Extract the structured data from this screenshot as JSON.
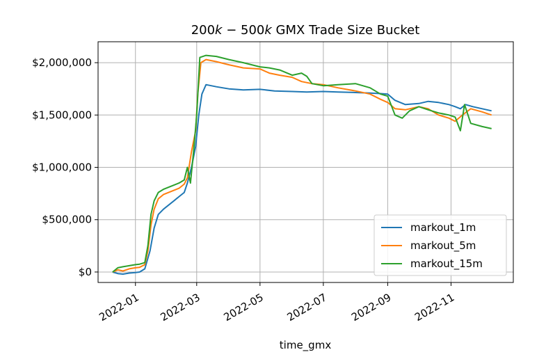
{
  "chart_data": {
    "type": "line",
    "title": "200k − 500k GMX Trade Size Bucket",
    "title_parts": {
      "a": "200",
      "b": "k",
      "c": " − 500",
      "d": "k",
      "e": " GMX Trade Size Bucket"
    },
    "xlabel": "time_gmx",
    "ylabel": "",
    "x_ticks": [
      "2022-01",
      "2022-03",
      "2022-05",
      "2022-07",
      "2022-09",
      "2022-11"
    ],
    "y_ticks": [
      "$0",
      "$500,000",
      "$1,000,000",
      "$1,500,000",
      "$2,000,000"
    ],
    "y_tick_values": [
      0,
      500000,
      1000000,
      1500000,
      2000000
    ],
    "xlim": [
      "2021-11-26",
      "2022-12-31"
    ],
    "ylim": [
      -100000,
      2200000
    ],
    "grid": true,
    "legend_position": "lower-right",
    "series": [
      {
        "name": "markout_1m",
        "color": "#1f77b4",
        "points": [
          [
            "2021-12-10",
            0
          ],
          [
            "2021-12-15",
            -15000
          ],
          [
            "2021-12-20",
            -20000
          ],
          [
            "2021-12-26",
            -10000
          ],
          [
            "2022-01-01",
            -5000
          ],
          [
            "2022-01-05",
            0
          ],
          [
            "2022-01-10",
            30000
          ],
          [
            "2022-01-15",
            200000
          ],
          [
            "2022-01-19",
            420000
          ],
          [
            "2022-01-23",
            550000
          ],
          [
            "2022-01-28",
            600000
          ],
          [
            "2022-02-02",
            640000
          ],
          [
            "2022-02-07",
            680000
          ],
          [
            "2022-02-12",
            720000
          ],
          [
            "2022-02-17",
            760000
          ],
          [
            "2022-02-20",
            850000
          ],
          [
            "2022-02-24",
            1000000
          ],
          [
            "2022-02-28",
            1200000
          ],
          [
            "2022-03-03",
            1500000
          ],
          [
            "2022-03-06",
            1700000
          ],
          [
            "2022-03-10",
            1790000
          ],
          [
            "2022-03-20",
            1770000
          ],
          [
            "2022-04-01",
            1750000
          ],
          [
            "2022-04-15",
            1740000
          ],
          [
            "2022-05-01",
            1745000
          ],
          [
            "2022-05-15",
            1730000
          ],
          [
            "2022-06-01",
            1725000
          ],
          [
            "2022-06-15",
            1720000
          ],
          [
            "2022-07-01",
            1725000
          ],
          [
            "2022-07-15",
            1720000
          ],
          [
            "2022-08-01",
            1715000
          ],
          [
            "2022-08-15",
            1710000
          ],
          [
            "2022-08-25",
            1705000
          ],
          [
            "2022-09-01",
            1700000
          ],
          [
            "2022-09-08",
            1640000
          ],
          [
            "2022-09-18",
            1600000
          ],
          [
            "2022-10-01",
            1610000
          ],
          [
            "2022-10-10",
            1630000
          ],
          [
            "2022-10-20",
            1620000
          ],
          [
            "2022-10-30",
            1600000
          ],
          [
            "2022-11-05",
            1580000
          ],
          [
            "2022-11-10",
            1560000
          ],
          [
            "2022-11-15",
            1600000
          ],
          [
            "2022-11-22",
            1580000
          ],
          [
            "2022-12-01",
            1560000
          ],
          [
            "2022-12-10",
            1540000
          ]
        ]
      },
      {
        "name": "markout_5m",
        "color": "#ff7f0e",
        "points": [
          [
            "2021-12-10",
            0
          ],
          [
            "2021-12-15",
            20000
          ],
          [
            "2021-12-20",
            10000
          ],
          [
            "2021-12-26",
            30000
          ],
          [
            "2022-01-01",
            40000
          ],
          [
            "2022-01-05",
            45000
          ],
          [
            "2022-01-10",
            70000
          ],
          [
            "2022-01-13",
            200000
          ],
          [
            "2022-01-16",
            450000
          ],
          [
            "2022-01-19",
            600000
          ],
          [
            "2022-01-23",
            700000
          ],
          [
            "2022-01-28",
            740000
          ],
          [
            "2022-02-02",
            760000
          ],
          [
            "2022-02-07",
            780000
          ],
          [
            "2022-02-12",
            800000
          ],
          [
            "2022-02-17",
            840000
          ],
          [
            "2022-02-20",
            900000
          ],
          [
            "2022-02-24",
            1150000
          ],
          [
            "2022-02-28",
            1350000
          ],
          [
            "2022-03-02",
            1700000
          ],
          [
            "2022-03-05",
            2000000
          ],
          [
            "2022-03-10",
            2030000
          ],
          [
            "2022-03-20",
            2010000
          ],
          [
            "2022-04-01",
            1980000
          ],
          [
            "2022-04-15",
            1950000
          ],
          [
            "2022-05-01",
            1940000
          ],
          [
            "2022-05-10",
            1900000
          ],
          [
            "2022-05-20",
            1880000
          ],
          [
            "2022-06-01",
            1860000
          ],
          [
            "2022-06-10",
            1820000
          ],
          [
            "2022-06-20",
            1800000
          ],
          [
            "2022-07-01",
            1790000
          ],
          [
            "2022-07-15",
            1760000
          ],
          [
            "2022-08-01",
            1730000
          ],
          [
            "2022-08-15",
            1700000
          ],
          [
            "2022-08-25",
            1650000
          ],
          [
            "2022-09-01",
            1620000
          ],
          [
            "2022-09-08",
            1560000
          ],
          [
            "2022-09-18",
            1550000
          ],
          [
            "2022-10-01",
            1580000
          ],
          [
            "2022-10-10",
            1560000
          ],
          [
            "2022-10-20",
            1500000
          ],
          [
            "2022-10-30",
            1470000
          ],
          [
            "2022-11-05",
            1440000
          ],
          [
            "2022-11-12",
            1500000
          ],
          [
            "2022-11-20",
            1560000
          ],
          [
            "2022-12-01",
            1530000
          ],
          [
            "2022-12-10",
            1500000
          ]
        ]
      },
      {
        "name": "markout_15m",
        "color": "#2ca02c",
        "points": [
          [
            "2021-12-10",
            0
          ],
          [
            "2021-12-15",
            40000
          ],
          [
            "2021-12-20",
            50000
          ],
          [
            "2021-12-26",
            60000
          ],
          [
            "2022-01-01",
            70000
          ],
          [
            "2022-01-05",
            75000
          ],
          [
            "2022-01-10",
            90000
          ],
          [
            "2022-01-13",
            250000
          ],
          [
            "2022-01-16",
            550000
          ],
          [
            "2022-01-19",
            680000
          ],
          [
            "2022-01-23",
            760000
          ],
          [
            "2022-01-28",
            790000
          ],
          [
            "2022-02-02",
            810000
          ],
          [
            "2022-02-07",
            830000
          ],
          [
            "2022-02-12",
            850000
          ],
          [
            "2022-02-17",
            880000
          ],
          [
            "2022-02-20",
            1000000
          ],
          [
            "2022-02-23",
            850000
          ],
          [
            "2022-02-26",
            1150000
          ],
          [
            "2022-03-01",
            1500000
          ],
          [
            "2022-03-04",
            2050000
          ],
          [
            "2022-03-10",
            2070000
          ],
          [
            "2022-03-20",
            2060000
          ],
          [
            "2022-04-01",
            2030000
          ],
          [
            "2022-04-15",
            2000000
          ],
          [
            "2022-05-01",
            1960000
          ],
          [
            "2022-05-10",
            1950000
          ],
          [
            "2022-05-20",
            1930000
          ],
          [
            "2022-06-01",
            1880000
          ],
          [
            "2022-06-10",
            1900000
          ],
          [
            "2022-06-15",
            1870000
          ],
          [
            "2022-06-20",
            1800000
          ],
          [
            "2022-07-01",
            1780000
          ],
          [
            "2022-07-15",
            1790000
          ],
          [
            "2022-08-01",
            1800000
          ],
          [
            "2022-08-15",
            1760000
          ],
          [
            "2022-08-25",
            1700000
          ],
          [
            "2022-09-01",
            1680000
          ],
          [
            "2022-09-08",
            1500000
          ],
          [
            "2022-09-15",
            1470000
          ],
          [
            "2022-09-22",
            1540000
          ],
          [
            "2022-10-01",
            1580000
          ],
          [
            "2022-10-10",
            1550000
          ],
          [
            "2022-10-20",
            1520000
          ],
          [
            "2022-10-30",
            1500000
          ],
          [
            "2022-11-05",
            1480000
          ],
          [
            "2022-11-10",
            1350000
          ],
          [
            "2022-11-14",
            1600000
          ],
          [
            "2022-11-20",
            1420000
          ],
          [
            "2022-12-01",
            1390000
          ],
          [
            "2022-12-10",
            1370000
          ]
        ]
      }
    ]
  }
}
